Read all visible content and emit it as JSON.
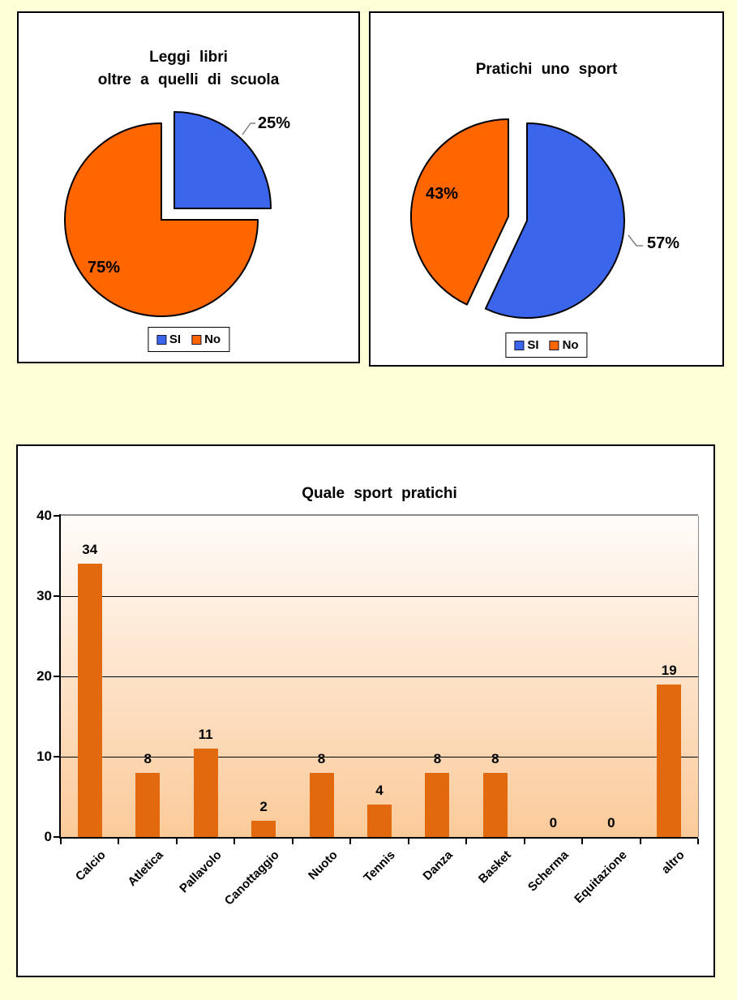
{
  "page_background": "#FFFFD7",
  "chart_data": [
    {
      "type": "pie",
      "title": "Leggi libri\noltre a quelli di scuola",
      "categories": [
        "SI",
        "No"
      ],
      "values": [
        25,
        75
      ],
      "unit": "%",
      "slice_labels": [
        "25%",
        "75%"
      ],
      "colors": [
        "#3B66EC",
        "#FF6600"
      ],
      "legend": [
        "SI",
        "No"
      ],
      "legend_position": "bottom",
      "start_angle_deg": 0,
      "direction": "clockwise",
      "exploded": true
    },
    {
      "type": "pie",
      "title": "Pratichi uno sport",
      "categories": [
        "SI",
        "No"
      ],
      "values": [
        57,
        43
      ],
      "unit": "%",
      "slice_labels": [
        "57%",
        "43%"
      ],
      "colors": [
        "#3B66EC",
        "#FF6600"
      ],
      "legend": [
        "SI",
        "No"
      ],
      "legend_position": "bottom",
      "start_angle_deg": 0,
      "direction": "clockwise",
      "exploded": true
    },
    {
      "type": "bar",
      "title": "Quale sport pratichi",
      "categories": [
        "Calcio",
        "Atletica",
        "Pallavolo",
        "Canottaggio",
        "Nuoto",
        "Tennis",
        "Danza",
        "Basket",
        "Scherma",
        "Equitazione",
        "altro"
      ],
      "values": [
        34,
        8,
        11,
        2,
        8,
        4,
        8,
        8,
        0,
        0,
        19
      ],
      "value_labels": [
        "34",
        "8",
        "11",
        "2",
        "8",
        "4",
        "8",
        "8",
        "0",
        "0",
        "19"
      ],
      "xlabel": "",
      "ylabel": "",
      "ylim": [
        0,
        40
      ],
      "yticks": [
        0,
        10,
        20,
        30,
        40
      ],
      "grid": true,
      "bar_color": "#E2690D",
      "plot_bg_gradient_top": "#FFFCFA",
      "plot_bg_gradient_bottom": "#FBCA99"
    }
  ]
}
